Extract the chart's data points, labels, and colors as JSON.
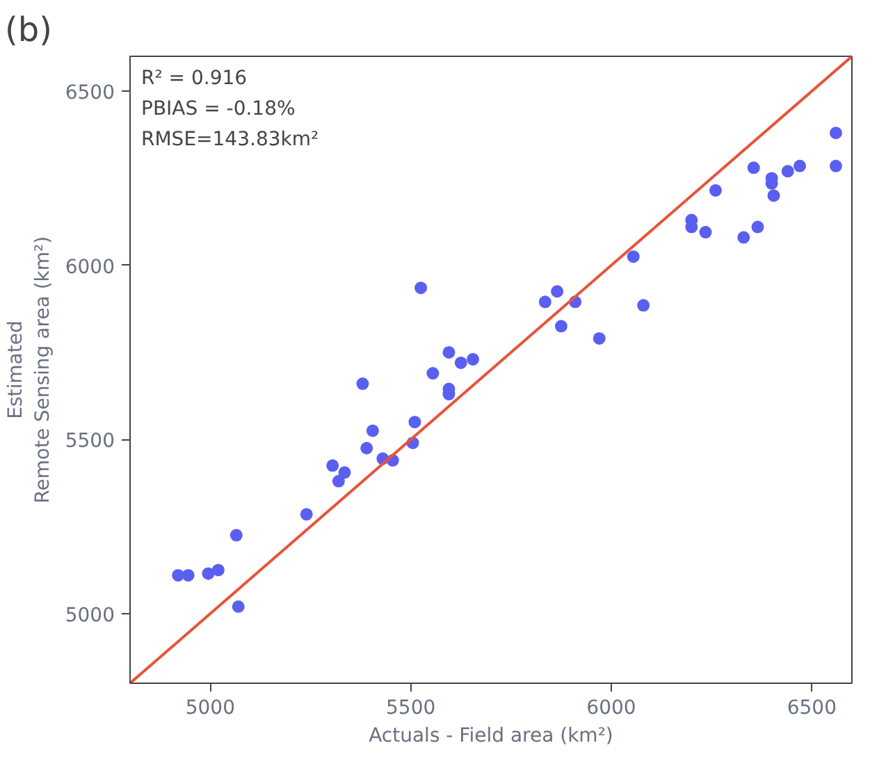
{
  "chart_data": {
    "type": "scatter",
    "title": "(b)",
    "xlabel": "Actuals - Field area (km²)",
    "ylabel": "Estimated\nRemote Sensing area (km²)",
    "annotations": [
      "R² = 0.916",
      "PBIAS = -0.18%",
      "RMSE=143.83km²"
    ],
    "xlim": [
      4800,
      6600
    ],
    "ylim": [
      4800,
      6600
    ],
    "xticks": [
      5000,
      5500,
      6000,
      6500
    ],
    "yticks": [
      5000,
      5500,
      6000,
      6500
    ],
    "grid": false,
    "marker": "circle",
    "series": [
      {
        "color": "#5b5ff0",
        "x": [
          4920,
          4945,
          4995,
          5020,
          5065,
          5070,
          5240,
          5305,
          5320,
          5335,
          5380,
          5390,
          5405,
          5430,
          5455,
          5505,
          5510,
          5525,
          5555,
          5595,
          5595,
          5595,
          5625,
          5655,
          5835,
          5865,
          5875,
          5910,
          5970,
          6055,
          6080,
          6200,
          6200,
          6235,
          6260,
          6330,
          6355,
          6365,
          6400,
          6400,
          6405,
          6440,
          6470,
          6560,
          6560
        ],
        "values": [
          5110,
          5110,
          5115,
          5125,
          5225,
          5020,
          5285,
          5425,
          5380,
          5405,
          5660,
          5475,
          5525,
          5445,
          5440,
          5490,
          5550,
          5935,
          5690,
          5645,
          5630,
          5750,
          5720,
          5730,
          5895,
          5925,
          5825,
          5895,
          5790,
          6025,
          5885,
          6130,
          6110,
          6095,
          6215,
          6080,
          6280,
          6110,
          6250,
          6235,
          6200,
          6270,
          6285,
          6380,
          6285
        ]
      },
      {
        "type": "line",
        "marker": "none",
        "color": "#e8533a",
        "x": [
          4800,
          6600
        ],
        "values": [
          4800,
          6600
        ]
      }
    ]
  }
}
